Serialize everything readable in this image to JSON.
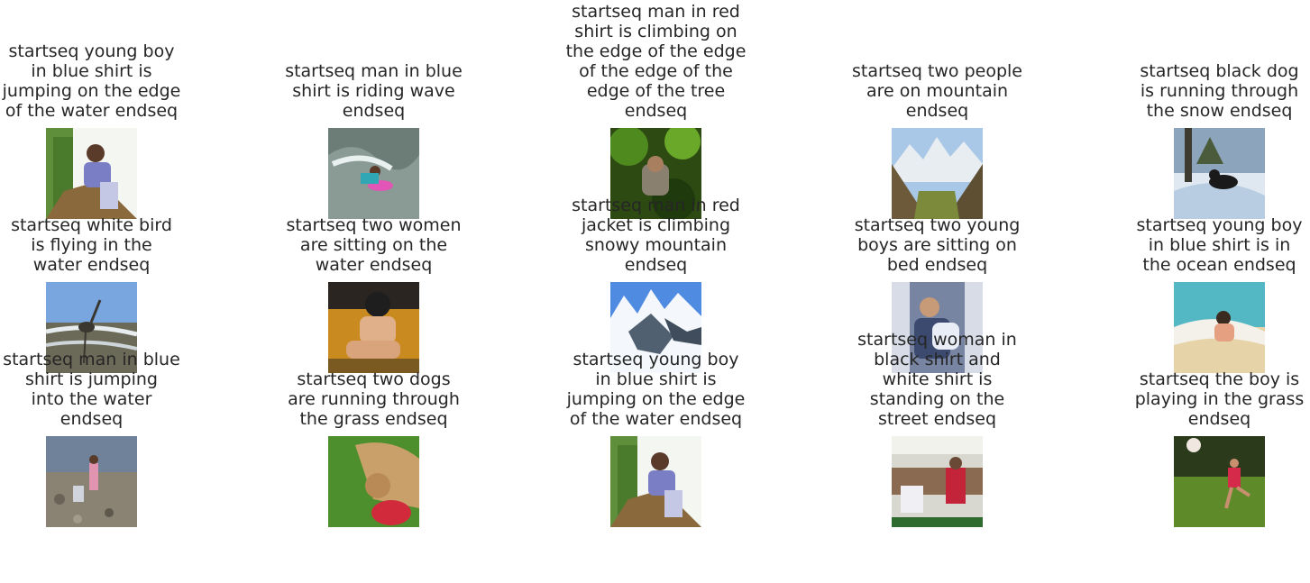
{
  "figure": {
    "panels": [
      {
        "caption": "startseq young boy\nin blue shirt is\njumping on the edge\nof the water endseq",
        "image": "boy-climbing-rock-photo"
      },
      {
        "caption": "startseq man in blue\nshirt is riding wave\nendseq",
        "image": "swimmer-pink-board-photo"
      },
      {
        "caption": "startseq man in red\nshirt is climbing on\nthe edge of the edge\nof the edge of the\nedge of the tree\nendseq",
        "image": "person-in-tree-photo"
      },
      {
        "caption": "startseq two people\nare on mountain\nendseq",
        "image": "mountain-valley-photo"
      },
      {
        "caption": "startseq black dog\nis running through\nthe snow endseq",
        "image": "black-dog-snow-photo"
      },
      {
        "caption": "startseq white bird\nis flying in the\nwater endseq",
        "image": "heron-beach-photo"
      },
      {
        "caption": "startseq two women\nare sitting on the\nwater endseq",
        "image": "swimmer-sitting-photo"
      },
      {
        "caption": "startseq man in red\njacket is climbing\nsnowy mountain\nendseq",
        "image": "snowy-peaks-photo"
      },
      {
        "caption": "startseq two young\nboys are sitting on\nbed endseq",
        "image": "boy-on-couch-photo"
      },
      {
        "caption": "startseq young boy\nin blue shirt is in\nthe ocean endseq",
        "image": "girl-in-surf-photo"
      },
      {
        "caption": "startseq man in blue\nshirt is jumping\ninto the water\nendseq",
        "image": "children-rocky-shore-photo"
      },
      {
        "caption": "startseq two dogs\nare running through\nthe grass endseq",
        "image": "dog-with-frisbee-photo"
      },
      {
        "caption": "startseq young boy\nin blue shirt is\njumping on the edge\nof the water endseq",
        "image": "boy-climbing-rock-photo"
      },
      {
        "caption": "startseq woman in\nblack shirt and\nwhite shirt is\nstanding on the\nstreet endseq",
        "image": "market-stall-photo"
      },
      {
        "caption": "startseq the boy is\nplaying in the grass\nendseq",
        "image": "boy-kicking-ball-photo"
      }
    ]
  }
}
